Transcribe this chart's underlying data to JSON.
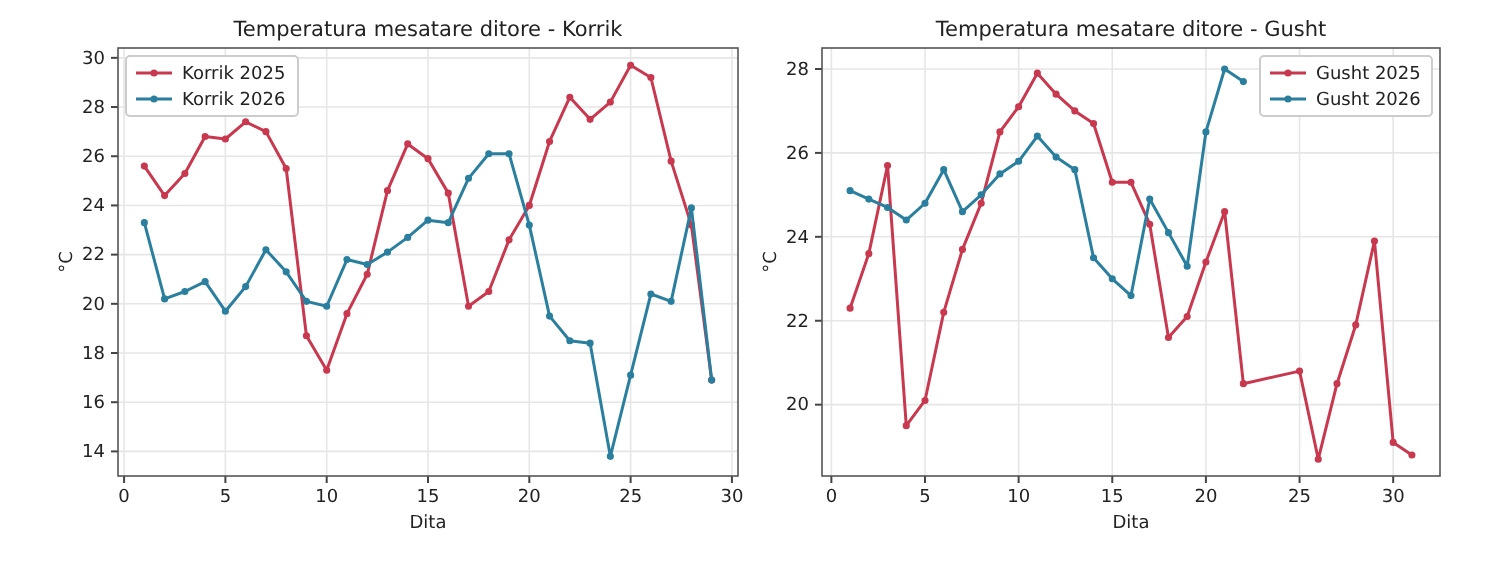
{
  "chart_data": [
    {
      "type": "line",
      "title": "Temperatura mesatare ditore - Korrik",
      "xlabel": "Dita",
      "ylabel": "°C",
      "x": [
        1,
        2,
        3,
        4,
        5,
        6,
        7,
        8,
        9,
        10,
        11,
        12,
        13,
        14,
        15,
        16,
        17,
        18,
        19,
        20,
        21,
        22,
        23,
        24,
        25,
        26,
        27,
        28,
        29
      ],
      "series": [
        {
          "name": "Korrik 2025",
          "color": "#c8384e",
          "values": [
            25.6,
            24.4,
            25.3,
            26.8,
            26.7,
            27.4,
            27.0,
            25.5,
            18.7,
            17.3,
            19.6,
            21.2,
            24.6,
            26.5,
            25.9,
            24.5,
            19.9,
            20.5,
            22.6,
            24.0,
            26.6,
            28.4,
            27.5,
            28.2,
            29.7,
            29.2,
            25.8,
            23.2,
            16.9
          ]
        },
        {
          "name": "Korrik 2026",
          "color": "#2a7f9e",
          "values": [
            23.3,
            20.2,
            20.5,
            20.9,
            19.7,
            20.7,
            22.2,
            21.3,
            20.1,
            19.9,
            21.8,
            21.6,
            22.1,
            22.7,
            23.4,
            23.3,
            25.1,
            26.1,
            26.1,
            23.2,
            19.5,
            18.5,
            18.4,
            13.8,
            17.1,
            20.4,
            20.1,
            23.9,
            16.9
          ]
        }
      ],
      "xlim": [
        -0.3,
        30.3
      ],
      "xticks": [
        0,
        5,
        10,
        15,
        20,
        25,
        30
      ],
      "ylim": [
        13.0,
        30.4
      ],
      "yticks": [
        14,
        16,
        18,
        20,
        22,
        24,
        26,
        28,
        30
      ],
      "grid": true,
      "legend": "top left",
      "marker": "circle",
      "line_style": "solid"
    },
    {
      "type": "line",
      "title": "Temperatura mesatare ditore - Gusht",
      "xlabel": "Dita",
      "ylabel": "°C",
      "series": [
        {
          "name": "Gusht 2025",
          "color": "#c8384e",
          "x": [
            1,
            2,
            3,
            4,
            5,
            6,
            7,
            8,
            9,
            10,
            11,
            12,
            13,
            14,
            15,
            16,
            17,
            18,
            19,
            20,
            21,
            22,
            25,
            26,
            27,
            28,
            29,
            30,
            31
          ],
          "values": [
            22.3,
            23.6,
            25.7,
            19.5,
            20.1,
            22.2,
            23.7,
            24.8,
            26.5,
            27.1,
            27.9,
            27.4,
            27.0,
            26.7,
            25.3,
            25.3,
            24.3,
            21.6,
            22.1,
            23.4,
            24.6,
            20.5,
            20.8,
            18.7,
            20.5,
            21.9,
            23.9,
            19.1,
            18.8
          ]
        },
        {
          "name": "Gusht 2026",
          "color": "#2a7f9e",
          "x": [
            1,
            2,
            3,
            4,
            5,
            6,
            7,
            8,
            9,
            10,
            11,
            12,
            13,
            14,
            15,
            16,
            17,
            18,
            19,
            20,
            21,
            22
          ],
          "values": [
            25.1,
            24.9,
            24.7,
            24.4,
            24.8,
            25.6,
            24.6,
            25.0,
            25.5,
            25.8,
            26.4,
            25.9,
            25.6,
            23.5,
            23.0,
            22.6,
            24.9,
            24.1,
            23.3,
            26.5,
            28.0,
            27.7
          ]
        }
      ],
      "xlim": [
        -0.5,
        32.5
      ],
      "xticks": [
        0,
        5,
        10,
        15,
        20,
        25,
        30
      ],
      "ylim": [
        18.3,
        28.5
      ],
      "yticks": [
        20,
        22,
        24,
        26,
        28
      ],
      "grid": true,
      "legend": "top right",
      "marker": "circle",
      "line_style": "solid"
    }
  ]
}
